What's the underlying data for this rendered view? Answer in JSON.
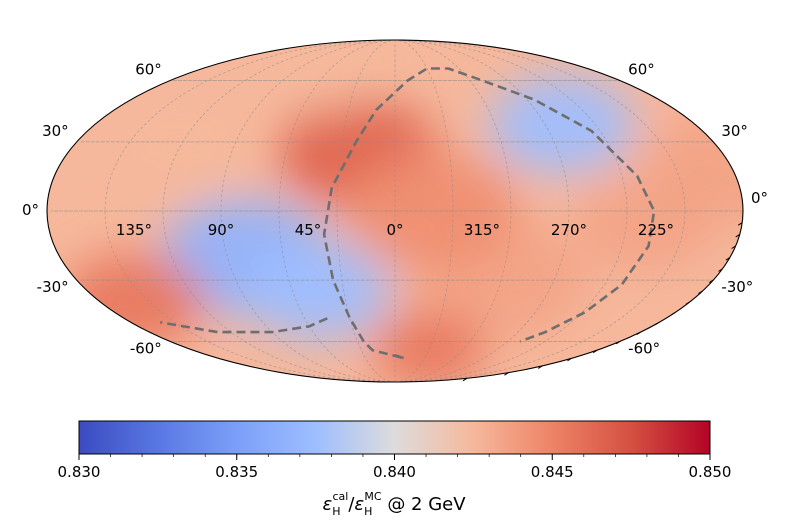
{
  "chart_data": {
    "type": "heatmap",
    "projection": "mollweide",
    "title": "",
    "lat_ticks": [
      {
        "value": 60,
        "label": "60°"
      },
      {
        "value": 30,
        "label": "30°"
      },
      {
        "value": 0,
        "label": "0°"
      },
      {
        "value": -30,
        "label": "-30°"
      },
      {
        "value": -60,
        "label": "-60°"
      }
    ],
    "lon_ticks": [
      {
        "value": 135,
        "label": "135°"
      },
      {
        "value": 90,
        "label": "90°"
      },
      {
        "value": 45,
        "label": "45°"
      },
      {
        "value": 0,
        "label": "0°"
      },
      {
        "value": 315,
        "label": "315°"
      },
      {
        "value": 270,
        "label": "270°"
      },
      {
        "value": 225,
        "label": "225°"
      }
    ],
    "colorbar": {
      "vmin": 0.83,
      "vmax": 0.85,
      "ticks": [
        {
          "value": 0.83,
          "label": "0.830"
        },
        {
          "value": 0.835,
          "label": "0.835"
        },
        {
          "value": 0.84,
          "label": "0.840"
        },
        {
          "value": 0.845,
          "label": "0.845"
        },
        {
          "value": 0.85,
          "label": "0.850"
        }
      ],
      "label_prefix": "ε",
      "label_sub1": "H",
      "label_sup1": "cal",
      "label_slash": "/",
      "label_sup2": "MC",
      "label_suffix": " @ 2 GeV",
      "cmap": "coolwarm"
    },
    "map_features": [
      {
        "lon": 20,
        "lat": 25,
        "value": 0.8465,
        "width": 28
      },
      {
        "lon": 80,
        "lat": -20,
        "value": 0.8365,
        "width": 30
      },
      {
        "lon": 45,
        "lat": -35,
        "value": 0.8375,
        "width": 25
      },
      {
        "lon": 260,
        "lat": 38,
        "value": 0.8375,
        "width": 25
      },
      {
        "lon": 160,
        "lat": -40,
        "value": 0.8455,
        "width": 25
      },
      {
        "lon": 300,
        "lat": -30,
        "value": 0.8435,
        "width": 30
      },
      {
        "lon": 180,
        "lat": 20,
        "value": 0.8435,
        "width": 30
      },
      {
        "lon": 340,
        "lat": 0,
        "value": 0.8445,
        "width": 30
      },
      {
        "lon": 230,
        "lat": -5,
        "value": 0.8435,
        "width": 25
      },
      {
        "lon": 120,
        "lat": 30,
        "value": 0.8425,
        "width": 25
      },
      {
        "lon": 330,
        "lat": -65,
        "value": 0.8455,
        "width": 20
      },
      {
        "lon": 80,
        "lat": 70,
        "value": 0.8425,
        "width": 25
      }
    ],
    "background_value": 0.8425,
    "dashed_curve": {
      "description": "great-circle boundary",
      "points": [
        {
          "lon": 0,
          "lat": -68
        },
        {
          "lon": 350,
          "lat": -70
        },
        {
          "lon": 20,
          "lat": -65
        },
        {
          "lon": 25,
          "lat": -60
        },
        {
          "lon": 30,
          "lat": -48
        },
        {
          "lon": 35,
          "lat": -30
        },
        {
          "lon": 37,
          "lat": -10
        },
        {
          "lon": 33,
          "lat": 10
        },
        {
          "lon": 22,
          "lat": 30
        },
        {
          "lon": 12,
          "lat": 45
        },
        {
          "lon": 350,
          "lat": 60
        },
        {
          "lon": 330,
          "lat": 67
        },
        {
          "lon": 310,
          "lat": 67
        },
        {
          "lon": 290,
          "lat": 60
        },
        {
          "lon": 265,
          "lat": 50
        },
        {
          "lon": 245,
          "lat": 35
        },
        {
          "lon": 232,
          "lat": 15
        },
        {
          "lon": 226,
          "lat": 0
        },
        {
          "lon": 226,
          "lat": -15
        },
        {
          "lon": 230,
          "lat": -32
        },
        {
          "lon": 238,
          "lat": -45
        },
        {
          "lon": 250,
          "lat": -55
        },
        {
          "lon": 260,
          "lat": -60
        }
      ],
      "left_branch": [
        {
          "lon": 45,
          "lat": -48
        },
        {
          "lon": 60,
          "lat": -52
        },
        {
          "lon": 90,
          "lat": -55
        },
        {
          "lon": 130,
          "lat": -55
        },
        {
          "lon": 160,
          "lat": -50
        }
      ]
    }
  }
}
